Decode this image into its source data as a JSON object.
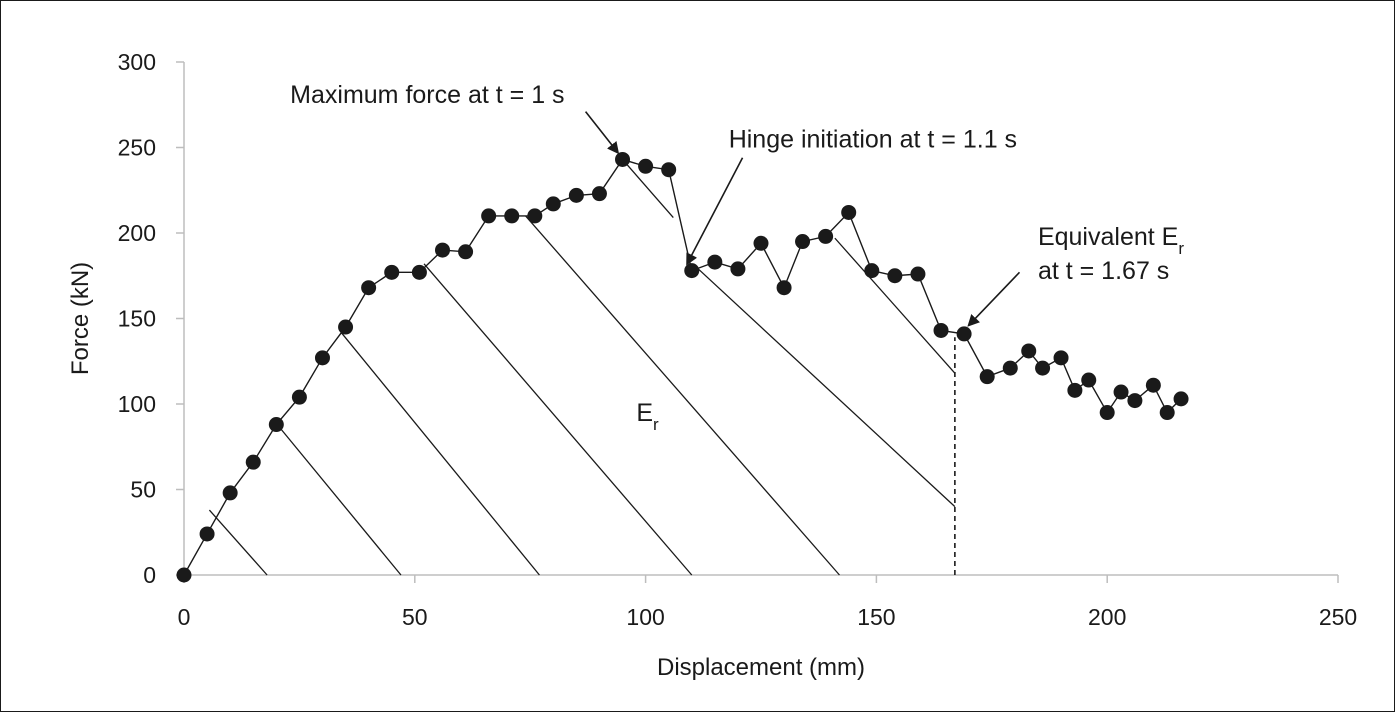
{
  "chart_data": {
    "type": "scatter",
    "xlabel": "Displacement (mm)",
    "ylabel": "Force (kN)",
    "xlim": [
      0,
      250
    ],
    "ylim": [
      0,
      300
    ],
    "x_ticks": [
      0,
      50,
      100,
      150,
      200,
      250
    ],
    "y_ticks": [
      0,
      50,
      100,
      150,
      200,
      250,
      300
    ],
    "grid": false,
    "legend": "none",
    "colors": {
      "line": "#1a1a1a",
      "marker": "#1a1a1a"
    },
    "series": [
      {
        "points": [
          [
            0,
            0
          ],
          [
            5,
            24
          ],
          [
            10,
            48
          ],
          [
            15,
            66
          ],
          [
            20,
            88
          ],
          [
            25,
            104
          ],
          [
            30,
            127
          ],
          [
            35,
            145
          ],
          [
            40,
            168
          ],
          [
            45,
            177
          ],
          [
            51,
            177
          ],
          [
            56,
            190
          ],
          [
            61,
            189
          ],
          [
            66,
            210
          ],
          [
            71,
            210
          ],
          [
            76,
            210
          ],
          [
            80,
            217
          ],
          [
            85,
            222
          ],
          [
            90,
            223
          ],
          [
            95,
            243
          ],
          [
            100,
            239
          ],
          [
            105,
            237
          ],
          [
            110,
            178
          ],
          [
            115,
            183
          ],
          [
            120,
            179
          ],
          [
            125,
            194
          ],
          [
            130,
            168
          ],
          [
            134,
            195
          ],
          [
            139,
            198
          ],
          [
            144,
            212
          ],
          [
            149,
            178
          ],
          [
            154,
            175
          ],
          [
            159,
            176
          ],
          [
            164,
            143
          ],
          [
            169,
            141
          ],
          [
            174,
            116
          ],
          [
            179,
            121
          ],
          [
            183,
            131
          ],
          [
            186,
            121
          ],
          [
            190,
            127
          ],
          [
            193,
            108
          ],
          [
            196,
            114
          ],
          [
            200,
            95
          ],
          [
            203,
            107
          ],
          [
            206,
            102
          ],
          [
            210,
            111
          ],
          [
            213,
            95
          ],
          [
            216,
            103
          ]
        ]
      }
    ],
    "hatch_lines": [
      {
        "from": [
          5.5,
          38
        ],
        "to": [
          18,
          0
        ]
      },
      {
        "from": [
          20.5,
          87
        ],
        "to": [
          47,
          0
        ]
      },
      {
        "from": [
          34,
          142
        ],
        "to": [
          77,
          0
        ]
      },
      {
        "from": [
          52,
          182
        ],
        "to": [
          110,
          0
        ]
      },
      {
        "from": [
          74,
          210
        ],
        "to": [
          142,
          0
        ]
      },
      {
        "from": [
          95,
          243
        ],
        "to": [
          106,
          209
        ]
      },
      {
        "from": [
          111,
          180
        ],
        "to": [
          167,
          40
        ]
      },
      {
        "from": [
          141,
          197
        ],
        "to": [
          167,
          118
        ]
      }
    ],
    "equivalent_line": {
      "x": 167,
      "y_from": 0,
      "y_to": 139
    },
    "region_label": {
      "main": "E",
      "sub": "r",
      "x": 98,
      "y": 90
    },
    "annotations": [
      {
        "id": "max-force",
        "text": "Maximum force at t = 1 s",
        "text_at": [
          23,
          276
        ],
        "arrow_from": [
          87,
          271
        ],
        "arrow_to": [
          94,
          247
        ]
      },
      {
        "id": "hinge",
        "text": "Hinge initiation at t = 1.1 s",
        "text_at": [
          118,
          250
        ],
        "arrow_from": [
          121,
          244
        ],
        "arrow_to": [
          109,
          182
        ]
      },
      {
        "id": "equivalent",
        "line1": "Equivalent E",
        "line1_sub": "r",
        "line2": "at t = 1.67 s",
        "text_at": [
          185,
          193
        ],
        "arrow_from": [
          181,
          177
        ],
        "arrow_to": [
          170,
          146
        ]
      }
    ]
  }
}
